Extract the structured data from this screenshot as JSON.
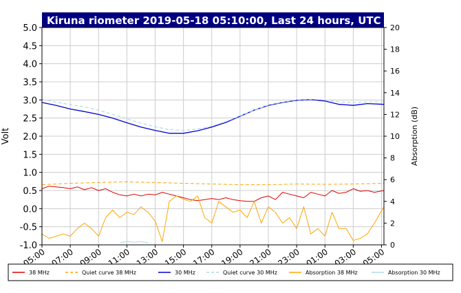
{
  "chart_data": {
    "type": "line",
    "title": "Kiruna riometer 2019-05-18 05:10:00, Last 24 hours, UTC",
    "ylabel": "Volt",
    "y2label": "Absorption (dB)",
    "ylim": [
      -1.0,
      5.0
    ],
    "y2lim": [
      0,
      20
    ],
    "yticks": [
      "5.0",
      "4.5",
      "4.0",
      "3.5",
      "3.0",
      "2.5",
      "2.0",
      "1.5",
      "1.0",
      "0.5",
      "0.0",
      "-0.5",
      "-1.0"
    ],
    "y2ticks": [
      "20",
      "18",
      "16",
      "14",
      "12",
      "10",
      "8",
      "6",
      "4",
      "2",
      "0"
    ],
    "xticks": [
      "05:00",
      "07:00",
      "09:00",
      "11:00",
      "13:00",
      "15:00",
      "17:00",
      "19:00",
      "21:00",
      "23:00",
      "01:00",
      "03:00",
      "05:00"
    ],
    "xlim_hours": [
      0,
      24.17
    ],
    "grid": true,
    "legend_position": "bottom",
    "legend": [
      {
        "label": "38 MHz",
        "color": "#dd0000",
        "style": "solid"
      },
      {
        "label": "Quiet curve 38 MHz",
        "color": "#ffa500",
        "style": "dashed"
      },
      {
        "label": "30 MHz",
        "color": "#0000cc",
        "style": "solid"
      },
      {
        "label": "Quiet curve 30 MHz",
        "color": "#add8e6",
        "style": "dashed"
      },
      {
        "label": "Absorption 38 MHz",
        "color": "#ffa500",
        "style": "solid"
      },
      {
        "label": "Absorption 30 MHz",
        "color": "#add8e6",
        "style": "solid"
      }
    ],
    "series": [
      {
        "name": "30 MHz",
        "axis": "left",
        "color": "#0000cc",
        "dash": false,
        "width": 1.3,
        "x": [
          0,
          1,
          2,
          3,
          4,
          5,
          6,
          7,
          8,
          9,
          10,
          11,
          12,
          13,
          14,
          15,
          16,
          17,
          18,
          19,
          20,
          21,
          22,
          23,
          24.17
        ],
        "y": [
          2.93,
          2.85,
          2.75,
          2.68,
          2.6,
          2.5,
          2.37,
          2.25,
          2.16,
          2.08,
          2.08,
          2.15,
          2.25,
          2.38,
          2.55,
          2.72,
          2.85,
          2.93,
          2.99,
          3.01,
          2.97,
          2.88,
          2.85,
          2.9,
          2.88
        ]
      },
      {
        "name": "Quiet curve 30 MHz",
        "axis": "left",
        "color": "#add8e6",
        "dash": true,
        "width": 1.1,
        "x": [
          0,
          1,
          2,
          3,
          4,
          5,
          6,
          7,
          8,
          9,
          10,
          11,
          12,
          13,
          14,
          15,
          16,
          17,
          18,
          19,
          20,
          21,
          22,
          23,
          24.17
        ],
        "y": [
          3.02,
          2.94,
          2.87,
          2.81,
          2.72,
          2.6,
          2.48,
          2.36,
          2.26,
          2.18,
          2.16,
          2.2,
          2.28,
          2.4,
          2.56,
          2.72,
          2.86,
          2.94,
          3.0,
          3.02,
          3.0,
          2.95,
          2.93,
          2.95,
          2.95
        ]
      },
      {
        "name": "38 MHz",
        "axis": "left",
        "color": "#dd0000",
        "dash": false,
        "width": 1.0,
        "x": [
          0,
          0.5,
          1,
          1.5,
          2,
          2.5,
          3,
          3.5,
          4,
          4.5,
          5,
          5.5,
          6,
          6.5,
          7,
          7.5,
          8,
          8.5,
          9,
          9.5,
          10,
          10.5,
          11,
          11.5,
          12,
          12.5,
          13,
          13.5,
          14,
          14.5,
          15,
          15.5,
          16,
          16.5,
          17,
          17.5,
          18,
          18.5,
          19,
          19.5,
          20,
          20.5,
          21,
          21.5,
          22,
          22.5,
          23,
          23.5,
          24.17
        ],
        "y": [
          0.55,
          0.62,
          0.6,
          0.58,
          0.55,
          0.6,
          0.52,
          0.58,
          0.5,
          0.55,
          0.45,
          0.38,
          0.35,
          0.4,
          0.35,
          0.4,
          0.38,
          0.45,
          0.4,
          0.35,
          0.3,
          0.25,
          0.22,
          0.25,
          0.28,
          0.25,
          0.3,
          0.25,
          0.22,
          0.2,
          0.2,
          0.3,
          0.35,
          0.25,
          0.45,
          0.4,
          0.35,
          0.3,
          0.45,
          0.4,
          0.35,
          0.5,
          0.42,
          0.45,
          0.55,
          0.48,
          0.5,
          0.45,
          0.5
        ]
      },
      {
        "name": "Quiet curve 38 MHz",
        "axis": "left",
        "color": "#ffa500",
        "dash": true,
        "width": 1.0,
        "x": [
          0,
          2,
          4,
          6,
          8,
          10,
          12,
          14,
          16,
          18,
          20,
          22,
          24.17
        ],
        "y": [
          0.66,
          0.7,
          0.72,
          0.74,
          0.72,
          0.7,
          0.68,
          0.66,
          0.66,
          0.68,
          0.67,
          0.68,
          0.7
        ]
      },
      {
        "name": "Absorption 38 MHz",
        "axis": "right",
        "color": "#ffa500",
        "dash": false,
        "width": 1.0,
        "x": [
          0,
          0.5,
          1,
          1.5,
          2,
          2.5,
          3,
          3.5,
          4,
          4.5,
          5,
          5.5,
          6,
          6.5,
          7,
          7.5,
          8,
          8.5,
          9,
          9.5,
          10,
          10.5,
          11,
          11.5,
          12,
          12.5,
          13,
          13.5,
          14,
          14.5,
          15,
          15.5,
          16,
          16.5,
          17,
          17.5,
          18,
          18.5,
          19,
          19.5,
          20,
          20.5,
          21,
          21.5,
          22,
          22.5,
          23,
          23.5,
          24.17
        ],
        "y": [
          1.0,
          0.6,
          0.8,
          1.0,
          0.8,
          1.5,
          2.0,
          1.5,
          0.8,
          2.5,
          3.2,
          2.5,
          3.0,
          2.8,
          3.5,
          3.0,
          2.2,
          0.3,
          4.0,
          4.5,
          4.2,
          4.0,
          4.5,
          2.5,
          2.0,
          4.0,
          3.5,
          3.0,
          3.2,
          2.5,
          4.0,
          2.0,
          3.5,
          3.0,
          2.0,
          2.5,
          1.5,
          3.5,
          1.0,
          1.5,
          0.8,
          3.0,
          1.5,
          1.5,
          0.4,
          0.6,
          1.0,
          2.0,
          3.5
        ]
      },
      {
        "name": "Absorption 30 MHz",
        "axis": "right",
        "color": "#add8e6",
        "dash": false,
        "width": 1.0,
        "x": [
          5.5,
          6.0,
          6.5,
          7.0,
          7.5
        ],
        "y": [
          0.2,
          0.3,
          0.25,
          0.3,
          0.2
        ]
      }
    ]
  }
}
